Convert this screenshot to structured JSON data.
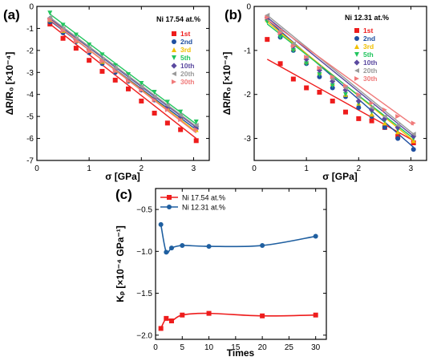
{
  "chart_data": [
    {
      "panel_label": "(a)",
      "type": "scatter",
      "xlabel": "σ [GPa]",
      "ylabel": "ΔR/R₀ [×10⁻⁴]",
      "xlim": [
        0,
        3.3
      ],
      "ylim": [
        -7,
        0
      ],
      "xticks": [
        0,
        1,
        2,
        3
      ],
      "yticks": [
        -7,
        -6,
        -5,
        -4,
        -3,
        -2,
        -1,
        0
      ],
      "legend_title": "Ni 17.54 at.%",
      "legend_position": "top-right",
      "grid": false,
      "series": [
        {
          "name": "1st",
          "color": "#ee1c1c",
          "marker": "square",
          "x": [
            0.25,
            0.5,
            0.75,
            1.0,
            1.25,
            1.5,
            1.75,
            2.0,
            2.25,
            2.5,
            2.75,
            3.05
          ],
          "y": [
            -0.8,
            -1.45,
            -1.9,
            -2.45,
            -2.95,
            -3.35,
            -3.75,
            -4.3,
            -4.85,
            -5.3,
            -5.6,
            -6.1
          ],
          "fit": [
            [
              0.25,
              -0.8
            ],
            [
              3.05,
              -6.0
            ]
          ]
        },
        {
          "name": "2nd",
          "color": "#1f4fa0",
          "marker": "circle",
          "x": [
            0.25,
            0.5,
            0.75,
            1.0,
            1.25,
            1.5,
            1.75,
            2.0,
            2.25,
            2.5,
            2.75,
            3.05
          ],
          "y": [
            -0.7,
            -1.2,
            -1.6,
            -2.1,
            -2.6,
            -3.0,
            -3.4,
            -3.8,
            -4.25,
            -4.65,
            -5.1,
            -5.55
          ],
          "fit": [
            [
              0.25,
              -0.65
            ],
            [
              3.05,
              -5.6
            ]
          ]
        },
        {
          "name": "3rd",
          "color": "#f0c000",
          "marker": "triangle-up",
          "x": [
            0.25,
            0.5,
            0.75,
            1.0,
            1.25,
            1.5,
            1.75,
            2.0,
            2.25,
            2.5,
            2.75,
            3.05
          ],
          "y": [
            -0.6,
            -1.1,
            -1.55,
            -2.0,
            -2.5,
            -2.9,
            -3.35,
            -3.75,
            -4.2,
            -4.6,
            -5.05,
            -5.6
          ],
          "fit": [
            [
              0.25,
              -0.6
            ],
            [
              3.05,
              -5.7
            ]
          ]
        },
        {
          "name": "5th",
          "color": "#22c55e",
          "marker": "triangle-down",
          "x": [
            0.25,
            0.5,
            0.75,
            1.0,
            1.25,
            1.5,
            1.75,
            2.0,
            2.25,
            2.5,
            2.75,
            3.05
          ],
          "y": [
            -0.3,
            -0.85,
            -1.3,
            -1.75,
            -2.2,
            -2.7,
            -3.1,
            -3.5,
            -3.9,
            -4.35,
            -4.8,
            -5.25
          ],
          "fit": [
            [
              0.25,
              -0.35
            ],
            [
              3.05,
              -5.35
            ]
          ]
        },
        {
          "name": "10th",
          "color": "#5b4aa0",
          "marker": "diamond",
          "x": [
            0.25,
            0.5,
            0.75,
            1.0,
            1.25,
            1.5,
            1.75,
            2.0,
            2.25,
            2.5,
            2.75,
            3.05
          ],
          "y": [
            -0.55,
            -1.05,
            -1.5,
            -1.95,
            -2.45,
            -2.85,
            -3.3,
            -3.7,
            -4.15,
            -4.55,
            -5.0,
            -5.45
          ],
          "fit": [
            [
              0.25,
              -0.55
            ],
            [
              3.05,
              -5.5
            ]
          ]
        },
        {
          "name": "20th",
          "color": "#9a9a9a",
          "marker": "triangle-left",
          "x": [
            0.25,
            0.5,
            0.75,
            1.0,
            1.25,
            1.5,
            1.75,
            2.0,
            2.25,
            2.5,
            2.75,
            3.05
          ],
          "y": [
            -0.5,
            -1.0,
            -1.45,
            -1.9,
            -2.4,
            -2.8,
            -3.25,
            -3.65,
            -4.1,
            -4.5,
            -4.95,
            -5.4
          ],
          "fit": [
            [
              0.25,
              -0.5
            ],
            [
              3.05,
              -5.45
            ]
          ]
        },
        {
          "name": "30th",
          "color": "#f07a7a",
          "marker": "triangle-right",
          "x": [
            0.25,
            0.5,
            0.75,
            1.0,
            1.25,
            1.5,
            1.75,
            2.0,
            2.25,
            2.5,
            2.75,
            3.05
          ],
          "y": [
            -0.6,
            -1.1,
            -1.6,
            -2.05,
            -2.5,
            -2.95,
            -3.4,
            -3.8,
            -4.25,
            -4.7,
            -5.15,
            -5.6
          ],
          "fit": [
            [
              0.25,
              -0.6
            ],
            [
              3.05,
              -5.75
            ]
          ]
        }
      ]
    },
    {
      "panel_label": "(b)",
      "type": "scatter",
      "xlabel": "σ [GPa]",
      "ylabel": "ΔR/R₀ [×10⁻⁴]",
      "xlim": [
        0,
        3.3
      ],
      "ylim": [
        -3.5,
        0
      ],
      "xticks": [
        0,
        1,
        2,
        3
      ],
      "yticks": [
        -3,
        -2,
        -1,
        0
      ],
      "legend_title": "Ni 12.31 at.%",
      "legend_position": "top-right",
      "grid": false,
      "series": [
        {
          "name": "1st",
          "color": "#ee1c1c",
          "marker": "square",
          "x": [
            0.25,
            0.5,
            0.75,
            1.0,
            1.25,
            1.5,
            1.75,
            2.0,
            2.25,
            2.5,
            2.75,
            3.05
          ],
          "y": [
            -0.75,
            -1.3,
            -1.65,
            -1.85,
            -1.95,
            -2.15,
            -2.4,
            -2.55,
            -2.6,
            -2.75,
            -2.95,
            -3.1
          ],
          "fit": [
            [
              0.25,
              -1.2
            ],
            [
              3.05,
              -3.05
            ]
          ]
        },
        {
          "name": "2nd",
          "color": "#1f4fa0",
          "marker": "circle",
          "x": [
            0.25,
            0.5,
            0.75,
            1.0,
            1.25,
            1.5,
            1.75,
            2.0,
            2.25,
            2.5,
            2.75,
            3.05
          ],
          "y": [
            -0.3,
            -0.7,
            -1.0,
            -1.3,
            -1.6,
            -1.85,
            -2.05,
            -2.3,
            -2.5,
            -2.75,
            -3.0,
            -3.25
          ],
          "fit": [
            [
              0.25,
              -0.3
            ],
            [
              3.05,
              -3.2
            ]
          ]
        },
        {
          "name": "3rd",
          "color": "#f0c000",
          "marker": "triangle-up",
          "x": [
            0.25,
            0.5,
            0.75,
            1.0,
            1.25,
            1.5,
            1.75,
            2.0,
            2.25,
            2.5,
            2.75,
            3.05
          ],
          "y": [
            -0.3,
            -0.6,
            -0.95,
            -1.25,
            -1.5,
            -1.75,
            -2.0,
            -2.2,
            -2.45,
            -2.65,
            -2.85,
            -3.05
          ],
          "fit": [
            [
              0.25,
              -0.35
            ],
            [
              3.05,
              -3.05
            ]
          ]
        },
        {
          "name": "5th",
          "color": "#22c55e",
          "marker": "triangle-down",
          "x": [
            0.25,
            0.5,
            0.75,
            1.0,
            1.25,
            1.5,
            1.75,
            2.0,
            2.25,
            2.5,
            2.75,
            3.05
          ],
          "y": [
            -0.35,
            -0.7,
            -1.0,
            -1.3,
            -1.55,
            -1.8,
            -2.0,
            -2.2,
            -2.4,
            -2.6,
            -2.8,
            -3.0
          ],
          "fit": [
            [
              0.25,
              -0.4
            ],
            [
              3.05,
              -3.0
            ]
          ]
        },
        {
          "name": "10th",
          "color": "#5b4aa0",
          "marker": "diamond",
          "x": [
            0.25,
            0.5,
            0.75,
            1.0,
            1.25,
            1.5,
            1.75,
            2.0,
            2.25,
            2.5,
            2.75,
            3.05
          ],
          "y": [
            -0.25,
            -0.6,
            -0.9,
            -1.2,
            -1.45,
            -1.7,
            -1.9,
            -2.15,
            -2.35,
            -2.55,
            -2.75,
            -2.95
          ],
          "fit": [
            [
              0.25,
              -0.25
            ],
            [
              3.05,
              -2.95
            ]
          ]
        },
        {
          "name": "20th",
          "color": "#9a9a9a",
          "marker": "triangle-left",
          "x": [
            0.25,
            0.5,
            0.75,
            1.0,
            1.25,
            1.5,
            1.75,
            2.0,
            2.25,
            2.5,
            2.75,
            3.05
          ],
          "y": [
            -0.2,
            -0.55,
            -0.85,
            -1.15,
            -1.4,
            -1.65,
            -1.85,
            -2.05,
            -2.3,
            -2.5,
            -2.7,
            -2.9
          ],
          "fit": [
            [
              0.25,
              -0.2
            ],
            [
              3.05,
              -2.9
            ]
          ]
        },
        {
          "name": "30th",
          "color": "#f07a7a",
          "marker": "triangle-right",
          "x": [
            0.25,
            0.5,
            0.75,
            1.0,
            1.25,
            1.5,
            1.75,
            2.0,
            2.25,
            2.5,
            2.75,
            3.05
          ],
          "y": [
            -0.25,
            -0.6,
            -0.9,
            -1.15,
            -1.4,
            -1.6,
            -1.8,
            -2.0,
            -2.2,
            -2.35,
            -2.5,
            -2.65
          ],
          "fit": [
            [
              0.25,
              -0.3
            ],
            [
              3.05,
              -2.7
            ]
          ]
        }
      ]
    },
    {
      "panel_label": "(c)",
      "type": "line",
      "xlabel": "Times",
      "ylabel": "Kₚ [×10⁻⁴ GPa⁻¹]",
      "xlim": [
        0,
        32
      ],
      "ylim": [
        -2.05,
        -0.25
      ],
      "xticks": [
        0,
        5,
        10,
        15,
        20,
        25,
        30
      ],
      "yticks": [
        -2.0,
        -1.5,
        -1.0,
        -0.5
      ],
      "ytick_labels": [
        "−2.0",
        "−1.5",
        "−1.0",
        "−0.5"
      ],
      "legend_position": "top-left",
      "grid": false,
      "series": [
        {
          "name": "Ni 17.54 at.%",
          "color": "#ee1c1c",
          "marker": "square",
          "x": [
            1,
            2,
            3,
            5,
            10,
            20,
            30
          ],
          "y": [
            -1.92,
            -1.8,
            -1.83,
            -1.76,
            -1.74,
            -1.77,
            -1.76
          ]
        },
        {
          "name": "Ni 12.31 at.%",
          "color": "#1f5fa0",
          "marker": "circle",
          "x": [
            1,
            2,
            3,
            5,
            10,
            20,
            30
          ],
          "y": [
            -0.68,
            -1.01,
            -0.96,
            -0.93,
            -0.94,
            -0.93,
            -0.82
          ]
        }
      ]
    }
  ]
}
